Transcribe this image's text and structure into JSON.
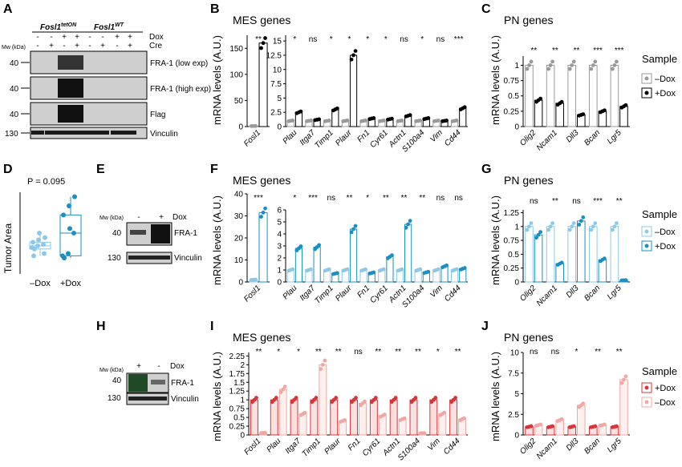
{
  "colors": {
    "black": "#000000",
    "grey": "#9a9a9a",
    "light_blue": "#8ec8e8",
    "blue": "#1a8fc4",
    "red": "#d8343a",
    "pink": "#f1a8a5",
    "blot_bg": "#cfcfcf",
    "blot_band": "#1a1a1a",
    "blot_band_green": "#1f4a25"
  },
  "panel_letters": [
    "A",
    "B",
    "C",
    "D",
    "E",
    "F",
    "G",
    "H",
    "I",
    "J"
  ],
  "shared": {
    "mes_title": "MES genes",
    "pn_title": "PN genes",
    "ylabel": "mRNA levels (A.U.)",
    "mw_label": "Mw (kDa)",
    "sample_title": "Sample"
  },
  "panel_A": {
    "genotype_tet": "Fosl1",
    "genotype_tet_sup": "tetON",
    "genotype_wt": "Fosl1",
    "genotype_wt_sup": "WT",
    "dox_label": "Dox",
    "cre_label": "Cre",
    "dox_signs": [
      "-",
      "-",
      "+",
      "+",
      "-",
      "-",
      "+",
      "+"
    ],
    "cre_signs": [
      "-",
      "+",
      "-",
      "+",
      "-",
      "+",
      "-",
      "+"
    ],
    "blots": [
      {
        "mw": "40",
        "label": "FRA-1 (low exp)"
      },
      {
        "mw": "40",
        "label": "FRA-1 (high exp)"
      },
      {
        "mw": "40",
        "label": "Flag"
      },
      {
        "mw": "130",
        "label": "Vinculin"
      }
    ]
  },
  "panel_D": {
    "p_value": "P = 0.095",
    "ylabel": "Tumor Area",
    "categories": [
      "–Dox",
      "+Dox"
    ]
  },
  "panel_E": {
    "signs": [
      "-",
      "+"
    ],
    "dox_label": "Dox",
    "blots": [
      {
        "mw": "40",
        "label": "FRA-1"
      },
      {
        "mw": "130",
        "label": "Vinculin"
      }
    ]
  },
  "panel_H": {
    "signs": [
      "+",
      "-"
    ],
    "dox_label": "Dox",
    "blots": [
      {
        "mw": "40",
        "label": "FRA-1"
      },
      {
        "mw": "130",
        "label": "Vinculin"
      }
    ]
  },
  "chart_data": [
    {
      "panel": "B-left",
      "type": "bar",
      "title": "MES genes",
      "ylabel": "mRNA levels (A.U.)",
      "categories": [
        "Fosl1"
      ],
      "yticks": [
        0,
        50,
        100,
        150
      ],
      "ylim": [
        0,
        175
      ],
      "series": [
        {
          "name": "–Dox",
          "values": [
            1
          ]
        },
        {
          "name": "+Dox",
          "values": [
            160
          ]
        }
      ],
      "significance": [
        "**"
      ]
    },
    {
      "panel": "B-right",
      "type": "bar",
      "categories": [
        "Plau",
        "Itga7",
        "Timp1",
        "Plaur",
        "Fn1",
        "Cyr61",
        "Actn1",
        "S100a4",
        "Vim",
        "Cd44"
      ],
      "yticks": [
        0,
        2.5,
        5,
        7.5,
        10,
        12.5,
        15
      ],
      "ylim": [
        0,
        16
      ],
      "series": [
        {
          "name": "–Dox",
          "values": [
            1,
            1,
            1,
            1,
            1,
            1,
            1,
            1,
            1,
            1
          ]
        },
        {
          "name": "+Dox",
          "values": [
            2.5,
            1.2,
            3.0,
            12.5,
            1.4,
            1.3,
            1.9,
            1.4,
            1.0,
            3.2
          ]
        }
      ],
      "significance": [
        "*",
        "ns",
        "*",
        "*",
        "*",
        "*",
        "ns",
        "*",
        "ns",
        "***"
      ]
    },
    {
      "panel": "C",
      "type": "bar",
      "title": "PN genes",
      "ylabel": "mRNA levels (A.U.)",
      "categories": [
        "Olig2",
        "Ncam1",
        "Dll3",
        "Bcan",
        "Lgr5"
      ],
      "yticks": [
        0,
        0.25,
        0.5,
        0.75,
        1.0
      ],
      "ylim": [
        0,
        1.15
      ],
      "series": [
        {
          "name": "–Dox",
          "values": [
            1.0,
            1.0,
            1.0,
            1.0,
            1.0
          ]
        },
        {
          "name": "+Dox",
          "values": [
            0.43,
            0.38,
            0.19,
            0.25,
            0.33
          ]
        }
      ],
      "significance": [
        "**",
        "**",
        "**",
        "***",
        "***"
      ],
      "legend": {
        "title": "Sample",
        "entries": [
          "–Dox",
          "+Dox"
        ],
        "position": "right"
      }
    },
    {
      "panel": "D",
      "type": "box",
      "ylabel": "Tumor Area",
      "categories": [
        "–Dox",
        "+Dox"
      ],
      "series": [
        {
          "name": "–Dox",
          "values": [
            0.88,
            0.92,
            0.95,
            1.0,
            1.05,
            0.75,
            0.7,
            1.2,
            1.1,
            0.85
          ]
        },
        {
          "name": "+Dox",
          "values": [
            0.7,
            0.75,
            1.2,
            1.6,
            1.8,
            2.0,
            0.65,
            1.3
          ]
        }
      ],
      "annotation": "P = 0.095"
    },
    {
      "panel": "F-left",
      "type": "bar",
      "title": "MES genes",
      "ylabel": "mRNA levels (A.U.)",
      "categories": [
        "Fosl1"
      ],
      "yticks": [
        0,
        10,
        20,
        30,
        40
      ],
      "ylim": [
        0,
        40
      ],
      "series": [
        {
          "name": "–Dox",
          "values": [
            1
          ]
        },
        {
          "name": "+Dox",
          "values": [
            31.5
          ]
        }
      ],
      "significance": [
        "***"
      ]
    },
    {
      "panel": "F-right",
      "type": "bar",
      "categories": [
        "Plau",
        "Itga7",
        "Timp1",
        "Plaur",
        "Fn1",
        "Cyr61",
        "Actn1",
        "S100a4",
        "Vim",
        "Cd44"
      ],
      "yticks": [
        0,
        1,
        2,
        3,
        4,
        5,
        6
      ],
      "ylim": [
        0,
        6
      ],
      "series": [
        {
          "name": "–Dox",
          "values": [
            1,
            1,
            1,
            1,
            1,
            1,
            1,
            1,
            1,
            1
          ]
        },
        {
          "name": "+Dox",
          "values": [
            2.8,
            2.9,
            0.7,
            4.4,
            0.75,
            2.1,
            4.8,
            0.8,
            1.3,
            1.1
          ]
        }
      ],
      "significance": [
        "*",
        "***",
        "ns",
        "**",
        "*",
        "**",
        "**",
        "**",
        "ns",
        "ns"
      ]
    },
    {
      "panel": "G",
      "type": "bar",
      "title": "PN genes",
      "ylabel": "mRNA levels (A.U.)",
      "categories": [
        "Olig2",
        "Ncam1",
        "Dll3",
        "Bcan",
        "Lgr5"
      ],
      "yticks": [
        0,
        0.25,
        0.5,
        0.75,
        1.0,
        1.25
      ],
      "ylim": [
        0,
        1.3
      ],
      "series": [
        {
          "name": "–Dox",
          "values": [
            1.0,
            1.0,
            1.0,
            1.0,
            1.0
          ]
        },
        {
          "name": "+Dox",
          "values": [
            0.85,
            0.33,
            1.1,
            0.4,
            0.03
          ]
        }
      ],
      "significance": [
        "ns",
        "**",
        "ns",
        "***",
        "**"
      ],
      "legend": {
        "title": "Sample",
        "entries": [
          "–Dox",
          "+Dox"
        ],
        "position": "right"
      }
    },
    {
      "panel": "I",
      "type": "bar",
      "title": "MES genes",
      "ylabel": "mRNA levels (A.U.)",
      "categories": [
        "Fosl1",
        "Plau",
        "Itga7",
        "Timp1",
        "Plaur",
        "Fn1",
        "Cyr61",
        "Actn1",
        "S100a4",
        "Vim",
        "Cd44"
      ],
      "yticks": [
        0,
        0.25,
        0.5,
        0.75,
        1.0,
        1.25,
        1.5,
        1.75,
        2.0,
        2.25
      ],
      "ylim": [
        0,
        2.35
      ],
      "series": [
        {
          "name": "+Dox",
          "values": [
            1.0,
            1.0,
            1.0,
            1.0,
            1.0,
            1.0,
            1.0,
            1.0,
            1.0,
            1.0,
            1.0
          ]
        },
        {
          "name": "–Dox",
          "values": [
            0.06,
            1.3,
            0.6,
            2.0,
            0.4,
            0.9,
            0.55,
            0.45,
            0.05,
            0.6,
            0.45
          ]
        }
      ],
      "significance": [
        "**",
        "*",
        "*",
        "**",
        "**",
        "ns",
        "**",
        "**",
        "**",
        "*",
        "**"
      ]
    },
    {
      "panel": "J",
      "type": "bar",
      "title": "PN genes",
      "ylabel": "mRNA levels (A.U.)",
      "categories": [
        "Olig2",
        "Ncam1",
        "Dll3",
        "Bcan",
        "Lgr5"
      ],
      "yticks": [
        0,
        2.5,
        5.0,
        7.5,
        10.0
      ],
      "ylim": [
        0,
        10
      ],
      "series": [
        {
          "name": "+Dox",
          "values": [
            1.0,
            1.0,
            1.0,
            1.0,
            1.0
          ]
        },
        {
          "name": "–Dox",
          "values": [
            1.2,
            1.8,
            3.6,
            1.2,
            6.7
          ]
        }
      ],
      "significance": [
        "ns",
        "ns",
        "*",
        "**",
        "**"
      ],
      "legend": {
        "title": "Sample",
        "entries": [
          "+Dox",
          "–Dox"
        ],
        "position": "right"
      }
    }
  ]
}
